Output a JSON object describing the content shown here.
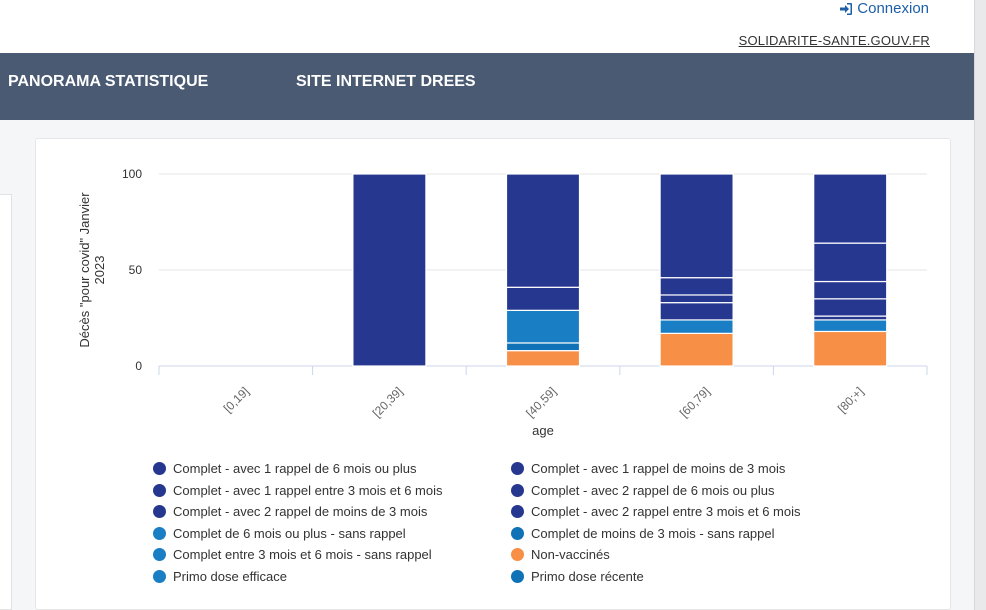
{
  "header": {
    "login_label": "Connexion",
    "site_link": "SOLIDARITE-SANTE.GOUV.FR"
  },
  "nav": {
    "items": [
      "PANORAMA STATISTIQUE",
      "SITE INTERNET DREES"
    ]
  },
  "colors": {
    "nav_bg": "#4a5a73",
    "dark_blue": "#26378f",
    "mid_blue": "#0f72b6",
    "light_blue": "#1a7ec4",
    "orange": "#f78f47"
  },
  "chart_data": {
    "type": "bar",
    "stacked": true,
    "ylabel": "Décès \"pour covid\" Janvier 2023",
    "xlabel": "age",
    "ylim": [
      0,
      100
    ],
    "yticks": [
      0,
      50,
      100
    ],
    "categories": [
      "[0,19]",
      "[20,39]",
      "[40,59]",
      "[60,79]",
      "[80;+]"
    ],
    "series": [
      {
        "name": "Primo dose récente",
        "color": "#0f72b6",
        "values": [
          0,
          0,
          0,
          0,
          0
        ]
      },
      {
        "name": "Primo dose efficace",
        "color": "#1a7ec4",
        "values": [
          0,
          0,
          0,
          0,
          0
        ]
      },
      {
        "name": "Non-vaccinés",
        "color": "#f78f47",
        "values": [
          0,
          0,
          8,
          17,
          18
        ]
      },
      {
        "name": "Complet entre 3 mois et 6 mois - sans rappel",
        "color": "#1a7ec4",
        "values": [
          0,
          0,
          0,
          0,
          0
        ]
      },
      {
        "name": "Complet de moins de 3 mois - sans rappel",
        "color": "#0f72b6",
        "values": [
          0,
          0,
          4,
          0,
          0
        ]
      },
      {
        "name": "Complet de 6 mois ou plus - sans rappel",
        "color": "#1a7ec4",
        "values": [
          0,
          0,
          17,
          7,
          6
        ]
      },
      {
        "name": "Complet - avec 2 rappel entre 3 mois et 6 mois",
        "color": "#26378f",
        "values": [
          0,
          0,
          0,
          0,
          2
        ]
      },
      {
        "name": "Complet - avec 2 rappel de moins de 3 mois",
        "color": "#26378f",
        "values": [
          0,
          0,
          0,
          9,
          9
        ]
      },
      {
        "name": "Complet - avec 2 rappel de 6 mois ou plus",
        "color": "#26378f",
        "values": [
          0,
          0,
          0,
          4,
          9
        ]
      },
      {
        "name": "Complet - avec 1 rappel entre 3 mois et 6 mois",
        "color": "#26378f",
        "values": [
          0,
          0,
          12,
          9,
          20
        ]
      },
      {
        "name": "Complet - avec 1 rappel de moins de 3 mois",
        "color": "#26378f",
        "values": [
          0,
          0,
          0,
          0,
          0
        ]
      },
      {
        "name": "Complet - avec 1 rappel de 6 mois ou plus",
        "color": "#26378f",
        "values": [
          0,
          100,
          59,
          54,
          36
        ]
      }
    ],
    "legend": [
      {
        "label": "Complet - avec 1 rappel de 6 mois ou plus",
        "color": "#26378f"
      },
      {
        "label": "Complet - avec 1 rappel de moins de 3 mois",
        "color": "#26378f"
      },
      {
        "label": "Complet - avec 1 rappel entre 3 mois et 6 mois",
        "color": "#26378f"
      },
      {
        "label": "Complet - avec 2 rappel de 6 mois ou plus",
        "color": "#26378f"
      },
      {
        "label": "Complet - avec 2 rappel de moins de 3 mois",
        "color": "#26378f"
      },
      {
        "label": "Complet - avec 2 rappel entre 3 mois et 6 mois",
        "color": "#26378f"
      },
      {
        "label": "Complet de 6 mois ou plus - sans rappel",
        "color": "#1a7ec4"
      },
      {
        "label": "Complet de moins de 3 mois - sans rappel",
        "color": "#0f72b6"
      },
      {
        "label": "Complet entre 3 mois et 6 mois - sans rappel",
        "color": "#1a7ec4"
      },
      {
        "label": "Non-vaccinés",
        "color": "#f78f47"
      },
      {
        "label": "Primo dose efficace",
        "color": "#1a7ec4"
      },
      {
        "label": "Primo dose récente",
        "color": "#0f72b6"
      }
    ]
  }
}
